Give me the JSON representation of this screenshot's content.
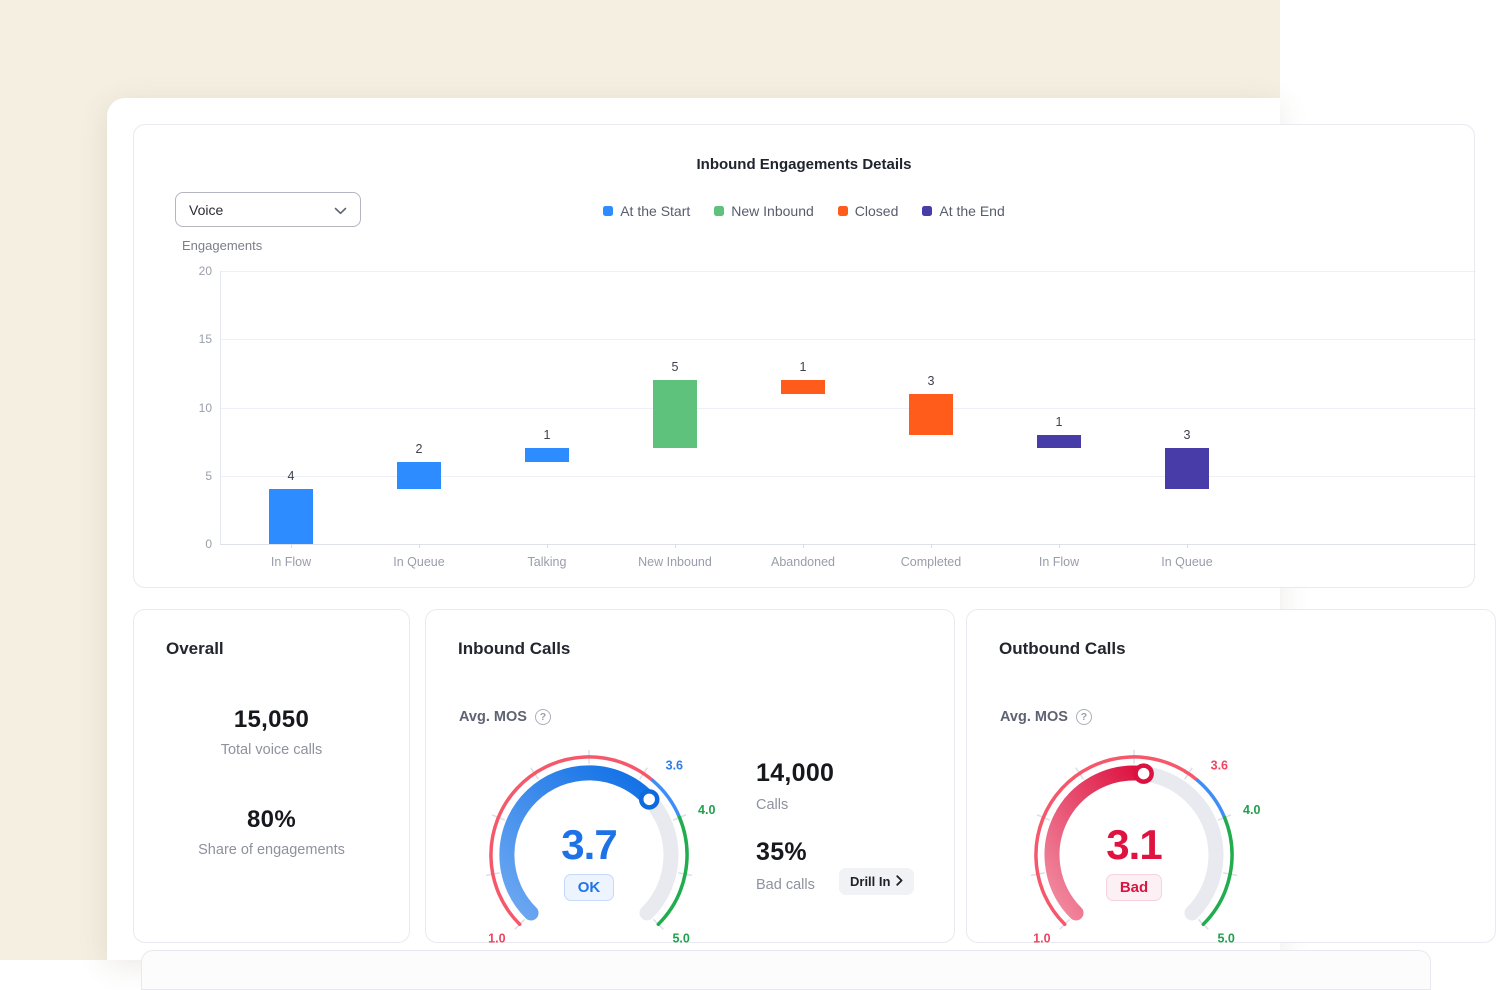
{
  "background_color": "#F4EFE1",
  "chart_card": {
    "title": "Inbound Engagements Details",
    "filter_value": "Voice",
    "axis_title": "Engagements"
  },
  "chart_data": {
    "type": "bar",
    "variant": "floating-waterfall",
    "title": "Inbound Engagements Details",
    "ylabel": "Engagements",
    "ylim": [
      0,
      20
    ],
    "yticks": [
      0,
      5,
      10,
      15,
      20
    ],
    "grid": true,
    "legend_position": "top",
    "series": [
      {
        "name": "At the Start",
        "color": "#2D8CFF"
      },
      {
        "name": "New Inbound",
        "color": "#5EC27C"
      },
      {
        "name": "Closed",
        "color": "#FF5C1C"
      },
      {
        "name": "At the End",
        "color": "#473CA8"
      }
    ],
    "categories": [
      "In Flow",
      "In Queue",
      "Talking",
      "New Inbound",
      "Abandoned",
      "Completed",
      "In Flow",
      "In Queue"
    ],
    "bars": [
      {
        "category": "In Flow",
        "series": "At the Start",
        "from": 0,
        "to": 4,
        "value": 4
      },
      {
        "category": "In Queue",
        "series": "At the Start",
        "from": 4,
        "to": 6,
        "value": 2
      },
      {
        "category": "Talking",
        "series": "At the Start",
        "from": 6,
        "to": 7,
        "value": 1
      },
      {
        "category": "New Inbound",
        "series": "New Inbound",
        "from": 7,
        "to": 12,
        "value": 5
      },
      {
        "category": "Abandoned",
        "series": "Closed",
        "from": 11,
        "to": 12,
        "value": 1
      },
      {
        "category": "Completed",
        "series": "Closed",
        "from": 8,
        "to": 11,
        "value": 3
      },
      {
        "category": "In Flow",
        "series": "At the End",
        "from": 7,
        "to": 8,
        "value": 1
      },
      {
        "category": "In Queue",
        "series": "At the End",
        "from": 4,
        "to": 7,
        "value": 3
      }
    ]
  },
  "cards": {
    "overall": {
      "title": "Overall",
      "stats": [
        {
          "value": "15,050",
          "label": "Total voice calls"
        },
        {
          "value": "80%",
          "label": "Share of engagements"
        }
      ]
    },
    "inbound": {
      "title": "Inbound Calls",
      "metric_label": "Avg. MOS",
      "stats": [
        {
          "value": "14,000",
          "label": "Calls"
        },
        {
          "value": "35%",
          "label": "Bad calls"
        }
      ],
      "drill_in_label": "Drill In",
      "gauge": {
        "min": 1.0,
        "max": 5.0,
        "value": 3.7,
        "value_display": "3.7",
        "status": "OK",
        "value_color": "#1D72E8",
        "knob_color": "#0E6BDF",
        "track_color": "#E8EAEF",
        "progress_gradient": [
          "#6FA9F2",
          "#0D6EE5"
        ],
        "segments": [
          {
            "from": 1.0,
            "to": 3.6,
            "color": "#F5586B"
          },
          {
            "from": 3.6,
            "to": 4.0,
            "color": "#3E8EF7"
          },
          {
            "from": 4.0,
            "to": 5.0,
            "color": "#21AD4E"
          }
        ],
        "badge": {
          "text": "OK",
          "color": "#2173E8",
          "bg": "#EDF4FD",
          "border": "#C5DAF7"
        },
        "tick_labels": [
          {
            "text": "1.0",
            "at": 1.0,
            "color": "#EF4460"
          },
          {
            "text": "3.6",
            "at": 3.6,
            "color": "#2D7CE8"
          },
          {
            "text": "4.0",
            "at": 4.0,
            "color": "#1FA14C"
          },
          {
            "text": "5.0",
            "at": 5.0,
            "color": "#1FA14C"
          }
        ]
      }
    },
    "outbound": {
      "title": "Outbound Calls",
      "metric_label": "Avg. MOS",
      "gauge": {
        "min": 1.0,
        "max": 5.0,
        "value": 3.1,
        "value_display": "3.1",
        "status": "Bad",
        "value_color": "#E01240",
        "knob_color": "#DC1140",
        "track_color": "#E8EAEF",
        "progress_gradient": [
          "#F28FA3",
          "#DC0F3E"
        ],
        "segments": [
          {
            "from": 1.0,
            "to": 3.6,
            "color": "#F5586B"
          },
          {
            "from": 3.6,
            "to": 4.0,
            "color": "#3E8EF7"
          },
          {
            "from": 4.0,
            "to": 5.0,
            "color": "#21AD4E"
          }
        ],
        "badge": {
          "text": "Bad",
          "color": "#D81540",
          "bg": "#FDF0F4",
          "border": "#F5D3DD"
        },
        "tick_labels": [
          {
            "text": "1.0",
            "at": 1.0,
            "color": "#EF4460"
          },
          {
            "text": "3.6",
            "at": 3.6,
            "color": "#EF4460"
          },
          {
            "text": "4.0",
            "at": 4.0,
            "color": "#1FA14C"
          },
          {
            "text": "5.0",
            "at": 5.0,
            "color": "#1FA14C"
          }
        ]
      }
    }
  }
}
